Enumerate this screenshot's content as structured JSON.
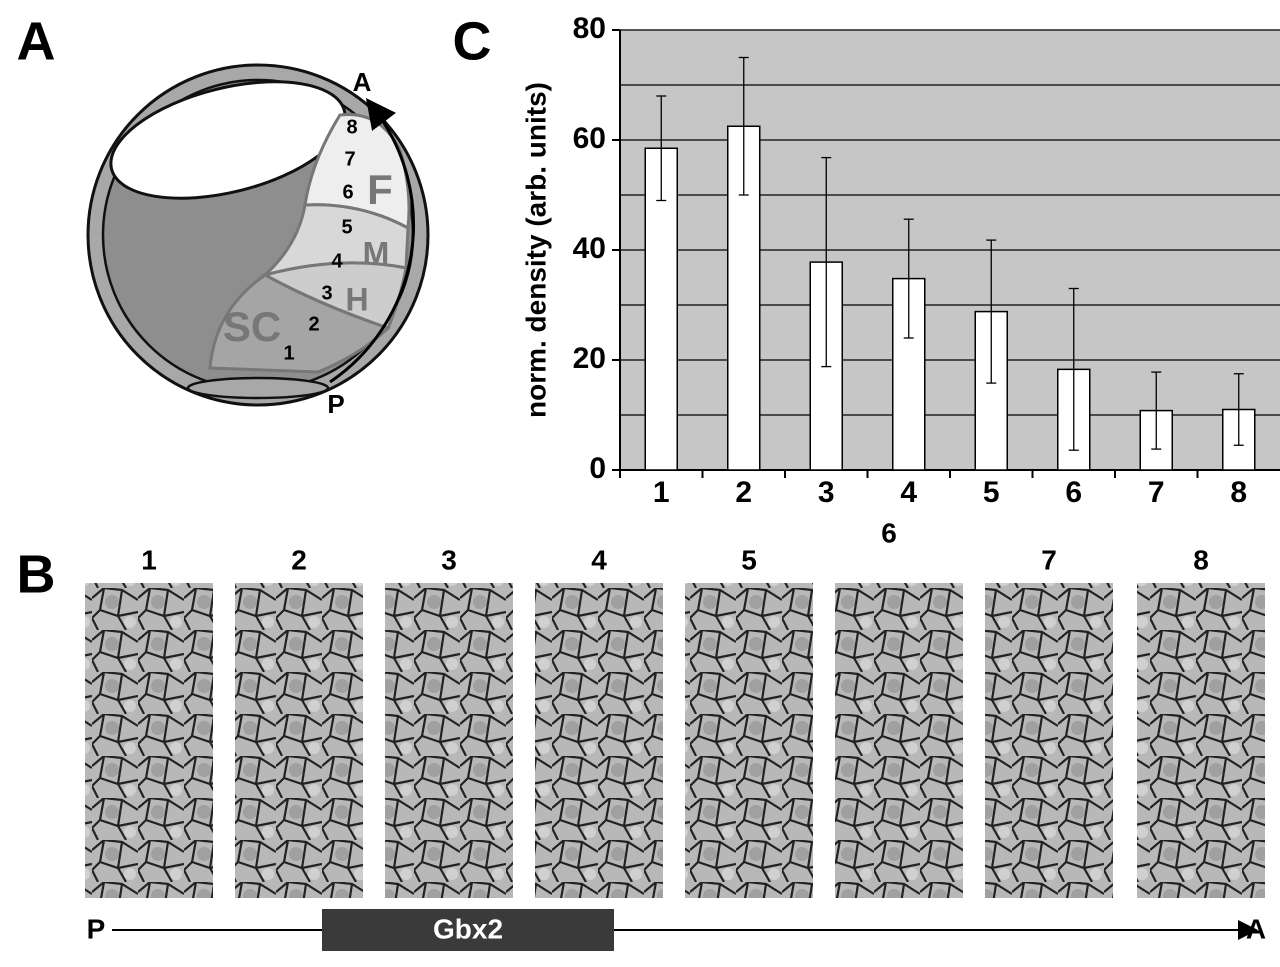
{
  "panel_labels": [
    "A",
    "B",
    "C"
  ],
  "diagram": {
    "positions": [
      1,
      2,
      3,
      4,
      5,
      6,
      7,
      8
    ],
    "regions": [
      "F",
      "M",
      "H",
      "SC"
    ],
    "axis_ends": [
      "A",
      "P"
    ]
  },
  "chart_data": {
    "type": "bar",
    "y_label": "norm. density (arb. units)",
    "categories": [
      "1",
      "2",
      "3",
      "4",
      "5",
      "6",
      "7",
      "8"
    ],
    "values": [
      58.5,
      62.5,
      37.8,
      34.8,
      28.8,
      18.3,
      10.8,
      11
    ],
    "errors": [
      9.5,
      12.5,
      19,
      10.8,
      13,
      14.7,
      7,
      6.5
    ],
    "color": "#ffffff",
    "ylim": [
      0,
      80
    ],
    "yticks": [
      0,
      20,
      40,
      60,
      80
    ],
    "minor_yticks": [
      10,
      30,
      50,
      70
    ],
    "grid": true
  },
  "strip": {
    "labels": [
      "1",
      "2",
      "3",
      "4",
      "5",
      "6",
      "7",
      "8"
    ],
    "axis_ends": [
      "P",
      "A"
    ],
    "gene": "Gbx2"
  }
}
